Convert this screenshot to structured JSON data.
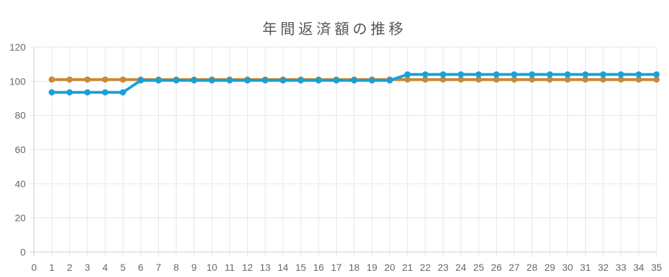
{
  "chart_data": {
    "type": "line",
    "title": "年間返済額の推移",
    "xlabel": "",
    "ylabel": "",
    "x": [
      0,
      1,
      2,
      3,
      4,
      5,
      6,
      7,
      8,
      9,
      10,
      11,
      12,
      13,
      14,
      15,
      16,
      17,
      18,
      19,
      20,
      21,
      22,
      23,
      24,
      25,
      26,
      27,
      28,
      29,
      30,
      31,
      32,
      33,
      34,
      35
    ],
    "xlim": [
      0,
      35
    ],
    "ylim": [
      0,
      120
    ],
    "yticks": [
      0,
      20,
      40,
      60,
      80,
      100,
      120
    ],
    "grid": true,
    "legend": "none",
    "series": [
      {
        "color": "#c8893a",
        "x": [
          1,
          2,
          3,
          4,
          5,
          6,
          7,
          8,
          9,
          10,
          11,
          12,
          13,
          14,
          15,
          16,
          17,
          18,
          19,
          20,
          21,
          22,
          23,
          24,
          25,
          26,
          27,
          28,
          29,
          30,
          31,
          32,
          33,
          34,
          35
        ],
        "values": [
          101,
          101,
          101,
          101,
          101,
          101,
          101,
          101,
          101,
          101,
          101,
          101,
          101,
          101,
          101,
          101,
          101,
          101,
          101,
          101,
          101,
          101,
          101,
          101,
          101,
          101,
          101,
          101,
          101,
          101,
          101,
          101,
          101,
          101,
          101
        ]
      },
      {
        "color": "#1a9fd9",
        "x": [
          1,
          2,
          3,
          4,
          5,
          6,
          7,
          8,
          9,
          10,
          11,
          12,
          13,
          14,
          15,
          16,
          17,
          18,
          19,
          20,
          21,
          22,
          23,
          24,
          25,
          26,
          27,
          28,
          29,
          30,
          31,
          32,
          33,
          34,
          35
        ],
        "values": [
          93.5,
          93.5,
          93.5,
          93.5,
          93.5,
          100.5,
          100.5,
          100.5,
          100.5,
          100.5,
          100.5,
          100.5,
          100.5,
          100.5,
          100.5,
          100.5,
          100.5,
          100.5,
          100.5,
          100.5,
          104,
          104,
          104,
          104,
          104,
          104,
          104,
          104,
          104,
          104,
          104,
          104,
          104,
          104,
          104
        ]
      }
    ]
  }
}
